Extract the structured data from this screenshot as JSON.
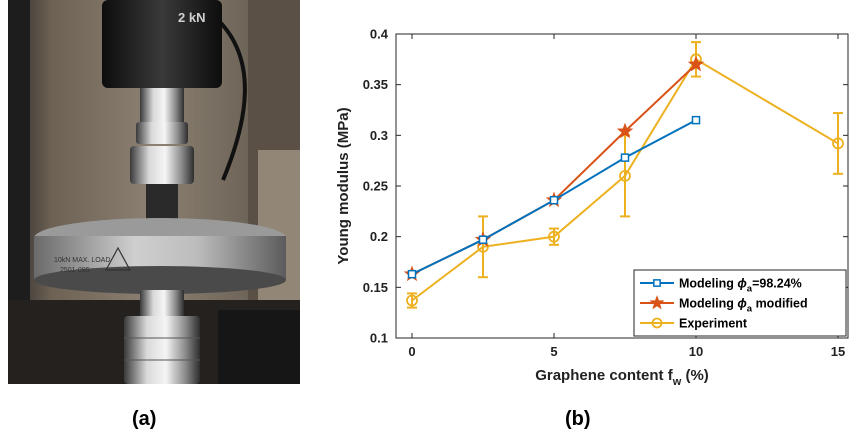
{
  "panels": {
    "a_label": "(a)",
    "b_label": "(b)"
  },
  "photo": {
    "machine_label": "2 kN",
    "plate_text_line1": "10kN MAX. LOAD",
    "plate_text_line2": "2501-095"
  },
  "chart_data": {
    "type": "line",
    "xlabel_main": "Graphene content f",
    "xlabel_sub": "w",
    "xlabel_unit": " (%)",
    "ylabel": "Young modulus (MPa)",
    "xlim": [
      0,
      15
    ],
    "ylim": [
      0.1,
      0.4
    ],
    "xticks": [
      "0",
      "5",
      "10",
      "15"
    ],
    "yticks": [
      "0.1",
      "0.15",
      "0.2",
      "0.25",
      "0.3",
      "0.35",
      "0.4"
    ],
    "legend_position": "lower-right",
    "series": [
      {
        "name": "Modeling ϕa=98.24%",
        "name_main": "Modeling ",
        "name_sym": "ϕ",
        "name_sub": "a",
        "name_tail": "=98.24%",
        "color": "#0072BD",
        "marker": "square",
        "x": [
          0,
          2.5,
          5,
          7.5,
          10
        ],
        "y": [
          0.163,
          0.197,
          0.236,
          0.278,
          0.315
        ]
      },
      {
        "name": "Modeling ϕa modified",
        "name_main": "Modeling ",
        "name_sym": "ϕ",
        "name_sub": "a",
        "name_tail": " modified",
        "color": "#D95319",
        "marker": "star",
        "x": [
          0,
          2.5,
          5,
          7.5,
          10
        ],
        "y": [
          0.163,
          0.197,
          0.236,
          0.304,
          0.37
        ]
      },
      {
        "name": "Experiment",
        "name_main": "Experiment",
        "name_sym": "",
        "name_sub": "",
        "name_tail": "",
        "color": "#EDB120",
        "marker": "circle",
        "x": [
          0,
          2.5,
          5,
          7.5,
          10,
          15
        ],
        "y": [
          0.137,
          0.19,
          0.2,
          0.26,
          0.375,
          0.292
        ],
        "error": [
          0.007,
          0.03,
          0.008,
          0.04,
          0.017,
          0.03
        ]
      }
    ]
  }
}
